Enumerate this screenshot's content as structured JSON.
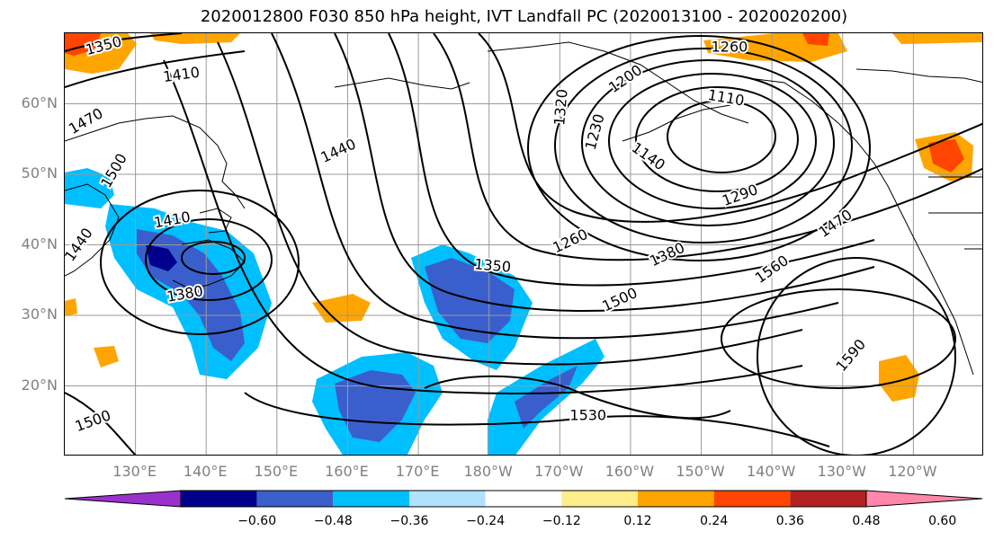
{
  "title": "2020012800 F030 850 hPa height, IVT Landfall PC (2020013100 - 2020020200)",
  "lat_labels": [
    {
      "text": "60°N",
      "lat": 60
    },
    {
      "text": "50°N",
      "lat": 50
    },
    {
      "text": "40°N",
      "lat": 40
    },
    {
      "text": "30°N",
      "lat": 30
    },
    {
      "text": "20°N",
      "lat": 20
    }
  ],
  "lon_labels": [
    {
      "text": "130°E",
      "lon": 130
    },
    {
      "text": "140°E",
      "lon": 140
    },
    {
      "text": "150°E",
      "lon": 150
    },
    {
      "text": "160°E",
      "lon": 160
    },
    {
      "text": "170°E",
      "lon": 170
    },
    {
      "text": "180°W",
      "lon": 180
    },
    {
      "text": "170°W",
      "lon": 190
    },
    {
      "text": "160°W",
      "lon": 200
    },
    {
      "text": "150°W",
      "lon": 210
    },
    {
      "text": "140°W",
      "lon": 220
    },
    {
      "text": "130°W",
      "lon": 230
    },
    {
      "text": "120°W",
      "lon": 240
    }
  ],
  "map_extent": {
    "lon_min": 120,
    "lon_max": 250,
    "lat_min": 10,
    "lat_max": 70
  },
  "contour_labels": [
    {
      "text": "1350",
      "lon": 125.5,
      "lat": 68.2,
      "rot": -15
    },
    {
      "text": "1410",
      "lon": 136.5,
      "lat": 64.1,
      "rot": -8
    },
    {
      "text": "1470",
      "lon": 123.0,
      "lat": 57.5,
      "rot": -30
    },
    {
      "text": "1500",
      "lon": 127.0,
      "lat": 50.5,
      "rot": -60
    },
    {
      "text": "1440",
      "lon": 158.7,
      "lat": 53.3,
      "rot": -25
    },
    {
      "text": "1410",
      "lon": 135.2,
      "lat": 43.5,
      "rot": -10
    },
    {
      "text": "1440",
      "lon": 122.0,
      "lat": 40.0,
      "rot": -55
    },
    {
      "text": "1380",
      "lon": 137.0,
      "lat": 33.0,
      "rot": -10
    },
    {
      "text": "1320",
      "lon": 190.2,
      "lat": 59.5,
      "rot": -85
    },
    {
      "text": "1200",
      "lon": 199.3,
      "lat": 63.5,
      "rot": -35
    },
    {
      "text": "1230",
      "lon": 195.0,
      "lat": 56.0,
      "rot": -75
    },
    {
      "text": "1140",
      "lon": 202.5,
      "lat": 52.5,
      "rot": 35
    },
    {
      "text": "1110",
      "lon": 213.5,
      "lat": 60.8,
      "rot": 10
    },
    {
      "text": "1260",
      "lon": 214.0,
      "lat": 68.0,
      "rot": 0
    },
    {
      "text": "1290",
      "lon": 215.5,
      "lat": 47.0,
      "rot": -20
    },
    {
      "text": "1260",
      "lon": 191.5,
      "lat": 40.5,
      "rot": -25
    },
    {
      "text": "1350",
      "lon": 180.5,
      "lat": 37.0,
      "rot": 5
    },
    {
      "text": "1380",
      "lon": 205.2,
      "lat": 38.6,
      "rot": -25
    },
    {
      "text": "1470",
      "lon": 229.0,
      "lat": 43.0,
      "rot": -35
    },
    {
      "text": "1500",
      "lon": 198.5,
      "lat": 32.2,
      "rot": -25
    },
    {
      "text": "1560",
      "lon": 220.0,
      "lat": 36.5,
      "rot": -35
    },
    {
      "text": "1590",
      "lon": 231.2,
      "lat": 24.3,
      "rot": -50
    },
    {
      "text": "1530",
      "lon": 194.0,
      "lat": 15.8,
      "rot": 0
    },
    {
      "text": "1500",
      "lon": 124.0,
      "lat": 15.0,
      "rot": -20
    }
  ],
  "colorbar": {
    "colors": [
      "#9932cc",
      "#00008b",
      "#3a5fcd",
      "#00bfff",
      "#b0e2ff",
      "#ffffff",
      "#ffec8b",
      "#ffa500",
      "#ff4500",
      "#b22222",
      "#ff88aa"
    ],
    "tick_labels": [
      "−0.60",
      "−0.48",
      "−0.36",
      "−0.24",
      "−0.12",
      "0.12",
      "0.24",
      "0.36",
      "0.48",
      "0.60"
    ]
  }
}
